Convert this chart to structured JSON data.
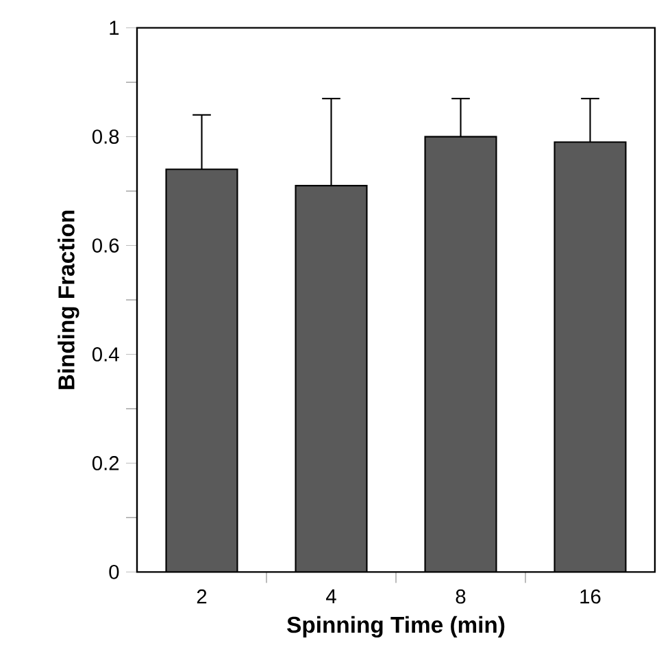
{
  "chart_data": {
    "type": "bar",
    "xlabel": "Spinning Time (min)",
    "ylabel": "Binding Fraction",
    "categories": [
      "2",
      "4",
      "8",
      "16"
    ],
    "values": [
      0.74,
      0.71,
      0.8,
      0.79
    ],
    "errors": [
      0.1,
      0.16,
      0.07,
      0.08
    ],
    "color": "#5a5a5a",
    "ylim": [
      0,
      1
    ],
    "yticks": [
      0,
      0.2,
      0.4,
      0.6,
      0.8,
      1
    ]
  }
}
